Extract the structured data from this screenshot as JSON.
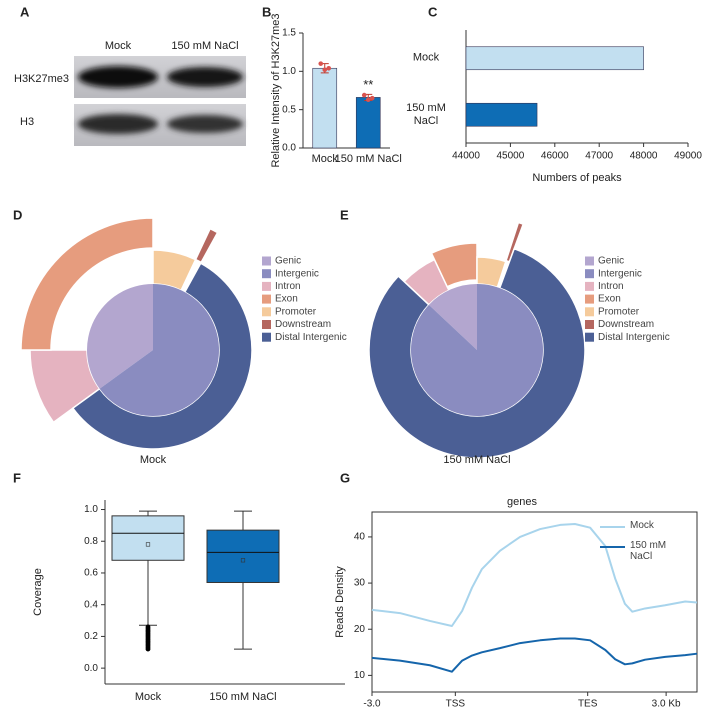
{
  "blot": {
    "panel": "A",
    "columns": [
      "Mock",
      "150 mM NaCl"
    ],
    "rows": [
      "H3K27me3",
      "H3"
    ]
  },
  "chart_data": [
    {
      "type": "bar",
      "panel": "B",
      "categories": [
        "Mock",
        "150 mM NaCl"
      ],
      "values": [
        1.04,
        0.66
      ],
      "errors": [
        0.06,
        0.04
      ],
      "points": [
        [
          1.1,
          1.02,
          1.04
        ],
        [
          0.69,
          0.63,
          0.65
        ]
      ],
      "colors": [
        "#c2dff0",
        "#0e6db5"
      ],
      "point_color": "#d9534f",
      "ylabel": "Relative Intensity of H3K27me3",
      "ylim": [
        0,
        1.5
      ],
      "yticks": [
        {
          "value": 0,
          "label": "0.0"
        },
        0.5,
        {
          "value": 1,
          "label": "1.0"
        },
        1.5
      ],
      "annotations": [
        {
          "text": "**",
          "category": "150 mM NaCl"
        }
      ]
    },
    {
      "type": "barh",
      "panel": "C",
      "categories": [
        "Mock",
        "150 mM NaCl"
      ],
      "values": [
        48000,
        45600
      ],
      "colors": [
        "#c2dff0",
        "#0e6db5"
      ],
      "xlabel": "Numbers of peaks",
      "xlim": [
        44000,
        49000
      ],
      "xticks": [
        44000,
        45000,
        46000,
        47000,
        48000,
        49000
      ]
    },
    {
      "type": "sunburst",
      "panel": "D",
      "title": "Mock",
      "inner": {
        "categories": [
          "Genic",
          "Intergenic"
        ],
        "values": [
          35,
          65
        ],
        "colors": [
          "#b3a6cf",
          "#8a8cc0"
        ]
      },
      "outer": {
        "categories": [
          "Intron",
          "Exon",
          "Promoter",
          "Downstream",
          "Distal Intergenic"
        ],
        "values": [
          10,
          25,
          7,
          1,
          57
        ],
        "colors": [
          "#e5b3c0",
          "#e69c7e",
          "#f5cb9c",
          "#b5675f",
          "#4b5f95"
        ]
      }
    },
    {
      "type": "sunburst",
      "panel": "E",
      "title": "150 mM NaCl",
      "inner": {
        "categories": [
          "Genic",
          "Intergenic"
        ],
        "values": [
          13,
          87
        ],
        "colors": [
          "#b3a6cf",
          "#8a8cc0"
        ]
      },
      "outer": {
        "categories": [
          "Intron",
          "Exon",
          "Promoter",
          "Downstream",
          "Distal Intergenic"
        ],
        "values": [
          6,
          7,
          5,
          0.6,
          81.4
        ],
        "colors": [
          "#e5b3c0",
          "#e69c7e",
          "#f5cb9c",
          "#b5675f",
          "#4b5f95"
        ]
      }
    },
    {
      "type": "box",
      "panel": "F",
      "categories": [
        "Mock",
        "150 mM NaCl"
      ],
      "colors": [
        "#c2dff0",
        "#0e6db5"
      ],
      "boxes": [
        {
          "whislo": 0.27,
          "q1": 0.68,
          "med": 0.85,
          "q3": 0.96,
          "whishi": 0.99,
          "mean": 0.78,
          "outliers": [
            0.12,
            0.13,
            0.14,
            0.15,
            0.16,
            0.17,
            0.18,
            0.19,
            0.2,
            0.21,
            0.22,
            0.23,
            0.24,
            0.25,
            0.26
          ]
        },
        {
          "whislo": 0.12,
          "q1": 0.54,
          "med": 0.73,
          "q3": 0.87,
          "whishi": 0.99,
          "mean": 0.68
        }
      ],
      "ylabel": "Coverage",
      "ylim": [
        -0.1,
        1.06
      ],
      "yticks": [
        {
          "value": 0,
          "label": "0.0"
        },
        0.2,
        0.4,
        0.6,
        0.8,
        {
          "value": 1,
          "label": "1.0"
        }
      ]
    },
    {
      "type": "line",
      "panel": "G",
      "title": "genes",
      "ylabel": "Reads Density",
      "x": [
        0,
        5.7,
        11.8,
        16.3,
        18.4,
        20.4,
        22.4,
        26.1,
        30.2,
        34.3,
        38.4,
        41.4,
        44.5,
        47.6,
        49.6,
        51.6,
        53.1,
        55.7,
        59.8,
        63.9,
        66.3
      ],
      "series": [
        {
          "name": "Mock",
          "color": "#a8d4ec",
          "values": [
            24.2,
            23.5,
            21.8,
            20.7,
            24,
            29,
            33,
            37,
            40,
            41.7,
            42.6,
            42.8,
            42,
            38,
            31,
            25.5,
            23.8,
            24.5,
            25.2,
            26,
            25.8
          ]
        },
        {
          "name": "150 mM NaCl",
          "color": "#1565ab",
          "values": [
            13.8,
            13.2,
            12.2,
            10.8,
            13.2,
            14.3,
            15,
            15.9,
            17,
            17.6,
            18,
            18,
            17.6,
            15.5,
            13.5,
            12.4,
            12.6,
            13.4,
            14,
            14.4,
            14.7
          ]
        }
      ],
      "xlim": [
        0,
        66.3
      ],
      "xticks": [
        {
          "value": 0,
          "label": "-3.0"
        },
        {
          "value": 17,
          "label": "TSS"
        },
        {
          "value": 44,
          "label": "TES"
        },
        {
          "value": 60,
          "label": "3.0 Kb"
        }
      ],
      "ylim": [
        6.4,
        45.4
      ],
      "yticks": [
        10,
        20,
        30,
        40
      ]
    }
  ]
}
